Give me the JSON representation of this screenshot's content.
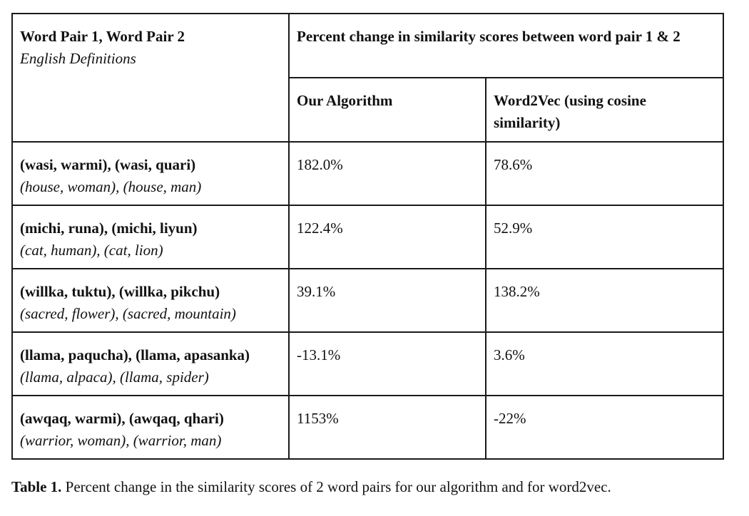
{
  "table": {
    "header": {
      "col1_title": "Word Pair 1, Word Pair 2",
      "col1_subtitle": "English Definitions",
      "group_title": "Percent change in similarity scores between word pair 1 & 2",
      "algo_col": "Our Algorithm",
      "w2v_col": "Word2Vec (using cosine similarity)"
    },
    "rows": [
      {
        "pairs": "(wasi, warmi), (wasi, quari)",
        "english": "(house, woman), (house, man)",
        "ours": "182.0%",
        "w2v": "78.6%"
      },
      {
        "pairs": "(michi, runa), (michi, liyun)",
        "english": "(cat, human), (cat, lion)",
        "ours": "122.4%",
        "w2v": "52.9%"
      },
      {
        "pairs": "(willka, tuktu), (willka, pikchu)",
        "english": "(sacred, flower), (sacred, mountain)",
        "ours": "39.1%",
        "w2v": "138.2%"
      },
      {
        "pairs": "(llama, paqucha), (llama, apasanka)",
        "english": "(llama, alpaca), (llama, spider)",
        "ours": "-13.1%",
        "w2v": "3.6%"
      },
      {
        "pairs": "(awqaq, warmi), (awqaq, qhari)",
        "english": "(warrior, woman), (warrior, man)",
        "ours": "1153%",
        "w2v": "-22%"
      }
    ]
  },
  "caption": {
    "label": "Table 1.",
    "text": " Percent change in the similarity scores of 2 word pairs for our algorithm and for word2vec."
  }
}
